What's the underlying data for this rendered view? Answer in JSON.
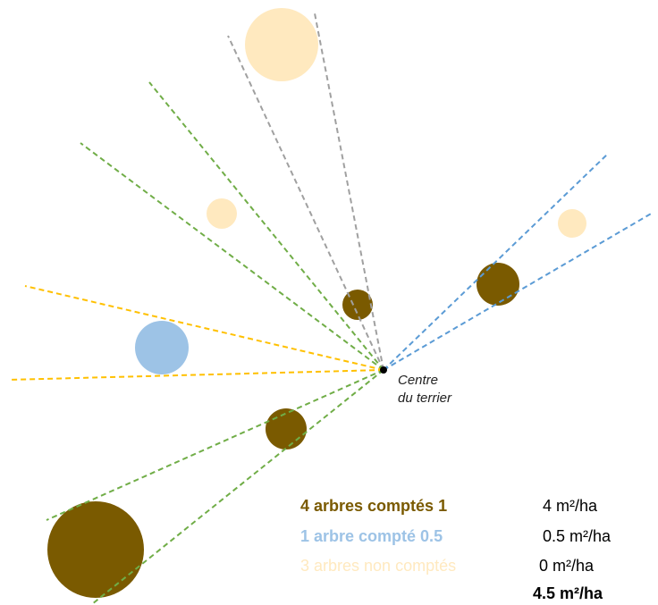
{
  "center_label": [
    "Centre",
    "du terrier"
  ],
  "colors": {
    "counted": "#7a5a00",
    "half": "#9dc3e6",
    "not_counted": "#ffe9bf",
    "line_green": "#70ad47",
    "line_gray": "#a0a0a0",
    "line_yellow": "#ffc000",
    "line_blue": "#5b9bd5"
  },
  "legend": [
    {
      "text": "4 arbres comptés 1",
      "value": "4 m²/ha",
      "color": "#7a5a00",
      "bold": true
    },
    {
      "text": "1 arbre compté 0.5",
      "value": "0.5 m²/ha",
      "color": "#9dc3e6",
      "bold": true
    },
    {
      "text": "3 arbres non comptés",
      "value": "0 m²/ha",
      "color": "#ffe9bf",
      "bold": false
    }
  ],
  "total": "4.5 m²/ha"
}
